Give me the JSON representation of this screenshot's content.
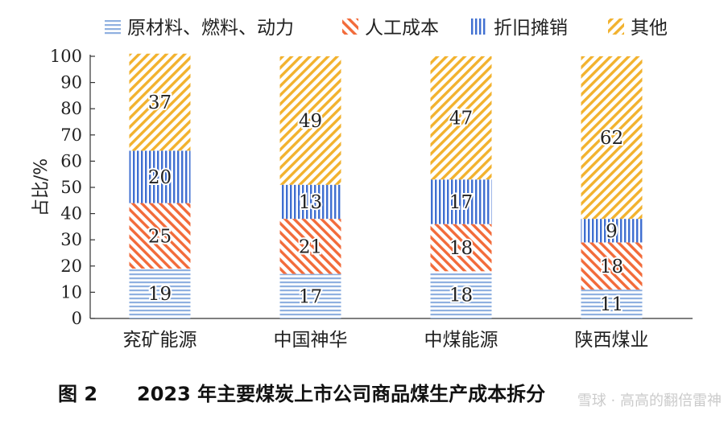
{
  "chart_data": {
    "type": "bar",
    "stacked": true,
    "categories": [
      "兖矿能源",
      "中国神华",
      "中煤能源",
      "陕西煤业"
    ],
    "series": [
      {
        "name": "原材料、燃料、动力",
        "values": [
          19,
          17,
          18,
          11
        ],
        "color": "#8fb0e0",
        "pattern": "horizontal"
      },
      {
        "name": "人工成本",
        "values": [
          25,
          21,
          18,
          18
        ],
        "color": "#f26b3a",
        "pattern": "diagonal-back"
      },
      {
        "name": "折旧摊销",
        "values": [
          20,
          13,
          17,
          9
        ],
        "color": "#3f6fd1",
        "pattern": "vertical"
      },
      {
        "name": "其他",
        "values": [
          37,
          49,
          47,
          62
        ],
        "color": "#f2b22e",
        "pattern": "diagonal-forward"
      }
    ],
    "ylabel": "占比/%",
    "xlabel": "",
    "ylim": [
      0,
      100
    ],
    "yticks": [
      0,
      10,
      20,
      30,
      40,
      50,
      60,
      70,
      80,
      90,
      100
    ],
    "legend_position": "top",
    "grid": false
  },
  "caption": {
    "number": "图 2",
    "title": "2023 年主要煤炭上市公司商品煤生产成本拆分"
  },
  "watermark": "雪球 · 高高的翻倍雷神"
}
